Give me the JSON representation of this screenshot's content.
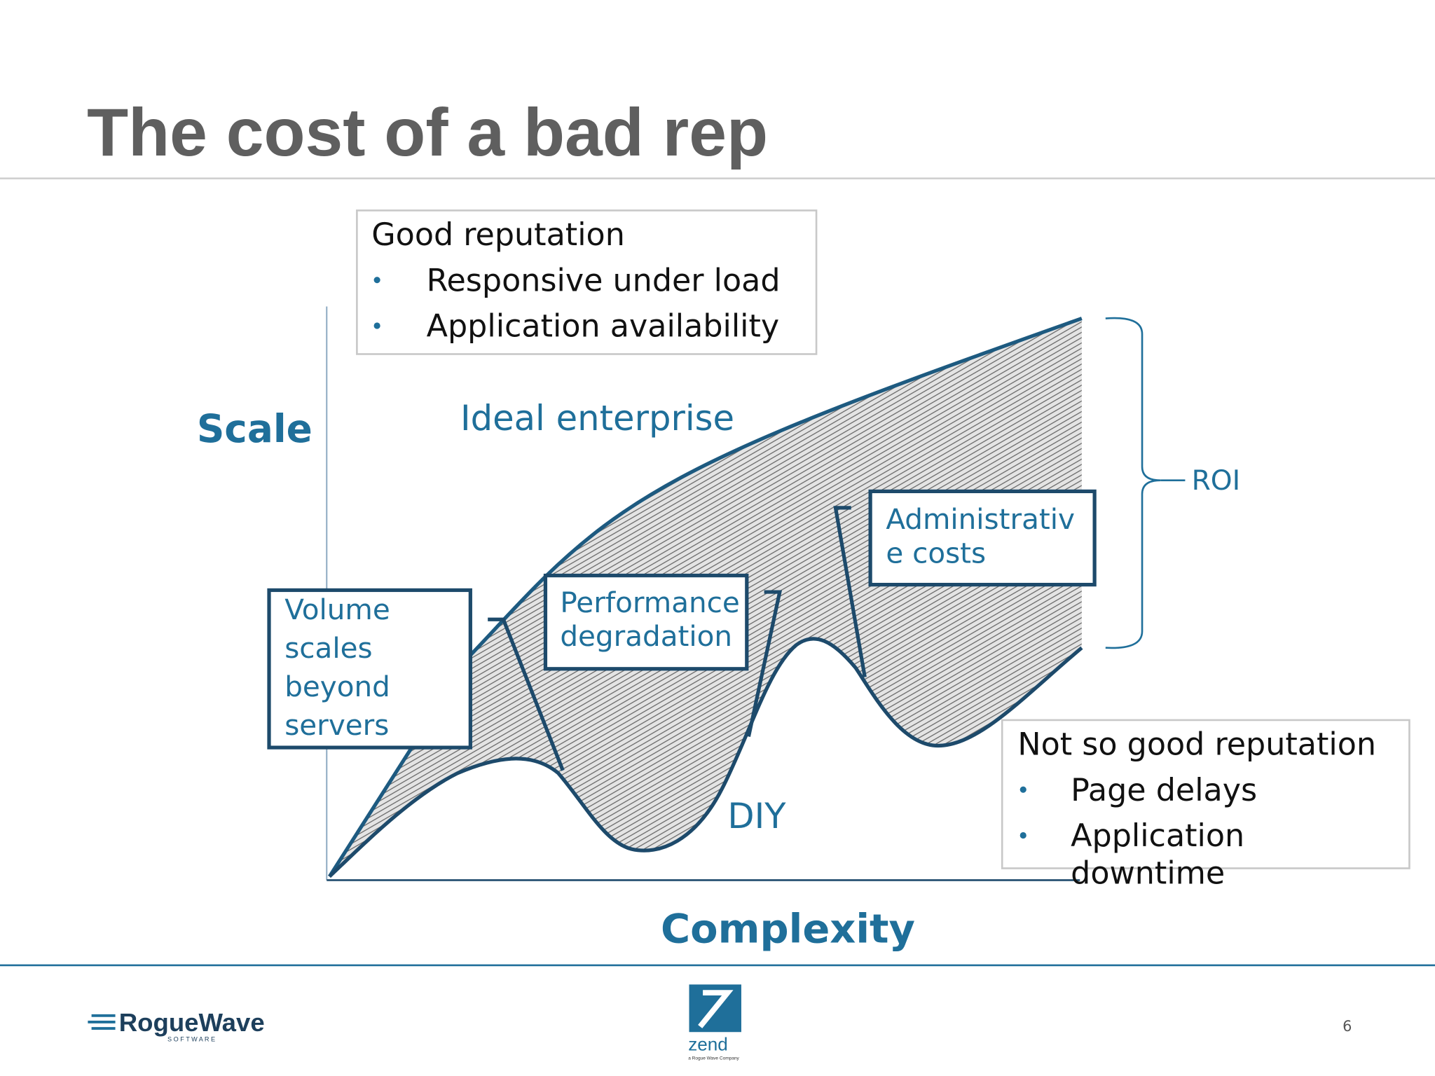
{
  "header": {
    "title": "The cost of a bad rep"
  },
  "diagram": {
    "good_box": {
      "heading": "Good reputation",
      "items": [
        "Responsive under load",
        "Application availability"
      ]
    },
    "axis_y": "Scale",
    "axis_x": "Complexity",
    "ideal_label": "Ideal enterprise",
    "diy_label": "DIY",
    "roi_label": "ROI",
    "callouts": [
      {
        "lines": [
          "Volume",
          "scales",
          "beyond",
          "servers"
        ]
      },
      {
        "lines": [
          "Performance",
          "degradation"
        ]
      },
      {
        "lines": [
          "Administrativ",
          "e costs"
        ]
      }
    ],
    "bad_box": {
      "heading": "Not so good reputation",
      "items": [
        {
          "lines": [
            "Page delays"
          ]
        },
        {
          "lines": [
            "Application",
            "downtime"
          ]
        }
      ]
    }
  },
  "footer": {
    "logo": "RogueWave",
    "logo_sub": "S O F T W A R E",
    "partner": "zend",
    "partner_sub": "a Rogue Wave Company",
    "page_number": 6
  }
}
